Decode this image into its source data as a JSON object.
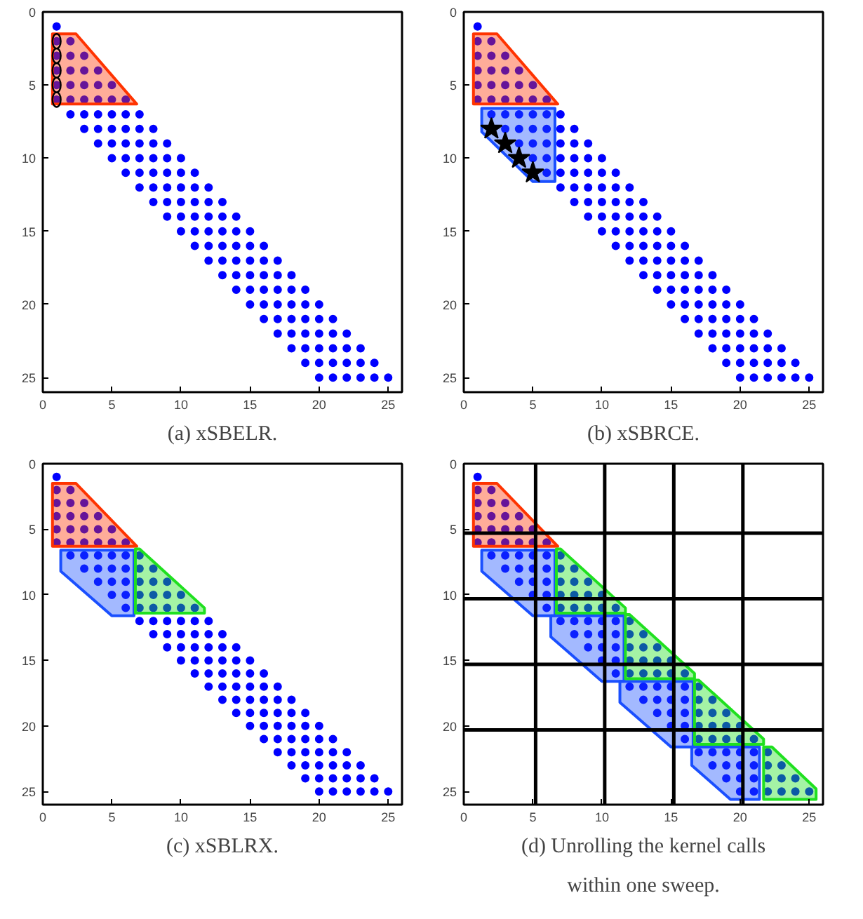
{
  "chart_data": [
    {
      "type": "scatter",
      "title": "(a) xSBELR.",
      "xlim": [
        0,
        26
      ],
      "ylim": [
        26,
        0
      ],
      "xticks": [
        0,
        5,
        10,
        15,
        20,
        25
      ],
      "yticks": [
        0,
        5,
        10,
        15,
        20,
        25
      ],
      "series": [
        {
          "type": "scatter",
          "marker": "circle",
          "color": "#0000ff",
          "x": [
            1,
            1,
            2,
            1,
            2,
            3,
            1,
            2,
            3,
            4,
            1,
            2,
            3,
            4,
            5,
            1,
            2,
            3,
            4,
            5,
            6,
            2,
            3,
            4,
            5,
            6,
            7,
            3,
            4,
            5,
            6,
            7,
            8,
            4,
            5,
            6,
            7,
            8,
            9,
            5,
            6,
            7,
            8,
            9,
            10,
            6,
            7,
            8,
            9,
            10,
            11,
            7,
            8,
            9,
            10,
            11,
            12,
            8,
            9,
            10,
            11,
            12,
            13,
            9,
            10,
            11,
            12,
            13,
            14,
            10,
            11,
            12,
            13,
            14,
            15,
            11,
            12,
            13,
            14,
            15,
            16,
            12,
            13,
            14,
            15,
            16,
            17,
            13,
            14,
            15,
            16,
            17,
            18,
            14,
            15,
            16,
            17,
            18,
            19,
            15,
            16,
            17,
            18,
            19,
            20,
            16,
            17,
            18,
            19,
            20,
            21,
            17,
            18,
            19,
            20,
            21,
            22,
            18,
            19,
            20,
            21,
            22,
            23,
            19,
            20,
            21,
            22,
            23,
            24,
            20,
            21,
            22,
            23,
            24,
            25
          ],
          "values": [
            1,
            2,
            2,
            3,
            3,
            3,
            4,
            4,
            4,
            4,
            5,
            5,
            5,
            5,
            5,
            6,
            6,
            6,
            6,
            6,
            6,
            7,
            7,
            7,
            7,
            7,
            7,
            8,
            8,
            8,
            8,
            8,
            8,
            9,
            9,
            9,
            9,
            9,
            9,
            10,
            10,
            10,
            10,
            10,
            10,
            11,
            11,
            11,
            11,
            11,
            11,
            12,
            12,
            12,
            12,
            12,
            12,
            13,
            13,
            13,
            13,
            13,
            13,
            14,
            14,
            14,
            14,
            14,
            14,
            15,
            15,
            15,
            15,
            15,
            15,
            16,
            16,
            16,
            16,
            16,
            16,
            17,
            17,
            17,
            17,
            17,
            17,
            18,
            18,
            18,
            18,
            18,
            18,
            19,
            19,
            19,
            19,
            19,
            19,
            20,
            20,
            20,
            20,
            20,
            20,
            21,
            21,
            21,
            21,
            21,
            21,
            22,
            22,
            22,
            22,
            22,
            22,
            23,
            23,
            23,
            23,
            23,
            23,
            24,
            24,
            24,
            24,
            24,
            24,
            25,
            25,
            25,
            25,
            25,
            25
          ]
        },
        {
          "type": "area",
          "color": "#ff3300",
          "x": [
            0.7,
            2.4,
            6.8,
            0.7
          ],
          "values": [
            1.5,
            1.5,
            6.3,
            6.3
          ]
        },
        {
          "type": "scatter",
          "marker": "circle",
          "color": "#000000",
          "x": [
            1,
            1,
            1,
            1,
            1
          ],
          "values": [
            2,
            3,
            4,
            5,
            6
          ]
        }
      ]
    },
    {
      "type": "scatter",
      "title": "(b) xSBRCE.",
      "xlim": [
        0,
        26
      ],
      "ylim": [
        26,
        0
      ],
      "xticks": [
        0,
        5,
        10,
        15,
        20,
        25
      ],
      "yticks": [
        0,
        5,
        10,
        15,
        20,
        25
      ],
      "series": [
        {
          "type": "scatter",
          "marker": "circle",
          "color": "#0000ff",
          "x": [
            1,
            1,
            2,
            1,
            2,
            3,
            1,
            2,
            3,
            4,
            1,
            2,
            3,
            4,
            5,
            1,
            2,
            3,
            4,
            5,
            6,
            2,
            3,
            4,
            5,
            6,
            7,
            3,
            4,
            5,
            6,
            7,
            8,
            4,
            5,
            6,
            7,
            8,
            9,
            5,
            6,
            7,
            8,
            9,
            10,
            6,
            7,
            8,
            9,
            10,
            11,
            7,
            8,
            9,
            10,
            11,
            12,
            8,
            9,
            10,
            11,
            12,
            13,
            9,
            10,
            11,
            12,
            13,
            14,
            10,
            11,
            12,
            13,
            14,
            15,
            11,
            12,
            13,
            14,
            15,
            16,
            12,
            13,
            14,
            15,
            16,
            17,
            13,
            14,
            15,
            16,
            17,
            18,
            14,
            15,
            16,
            17,
            18,
            19,
            15,
            16,
            17,
            18,
            19,
            20,
            16,
            17,
            18,
            19,
            20,
            21,
            17,
            18,
            19,
            20,
            21,
            22,
            18,
            19,
            20,
            21,
            22,
            23,
            19,
            20,
            21,
            22,
            23,
            24,
            20,
            21,
            22,
            23,
            24,
            25
          ],
          "values": [
            1,
            2,
            2,
            3,
            3,
            3,
            4,
            4,
            4,
            4,
            5,
            5,
            5,
            5,
            5,
            6,
            6,
            6,
            6,
            6,
            6,
            7,
            7,
            7,
            7,
            7,
            7,
            8,
            8,
            8,
            8,
            8,
            8,
            9,
            9,
            9,
            9,
            9,
            9,
            10,
            10,
            10,
            10,
            10,
            10,
            11,
            11,
            11,
            11,
            11,
            11,
            12,
            12,
            12,
            12,
            12,
            12,
            13,
            13,
            13,
            13,
            13,
            13,
            14,
            14,
            14,
            14,
            14,
            14,
            15,
            15,
            15,
            15,
            15,
            15,
            16,
            16,
            16,
            16,
            16,
            16,
            17,
            17,
            17,
            17,
            17,
            17,
            18,
            18,
            18,
            18,
            18,
            18,
            19,
            19,
            19,
            19,
            19,
            19,
            20,
            20,
            20,
            20,
            20,
            20,
            21,
            21,
            21,
            21,
            21,
            21,
            22,
            22,
            22,
            22,
            22,
            22,
            23,
            23,
            23,
            23,
            23,
            23,
            24,
            24,
            24,
            24,
            24,
            24,
            25,
            25,
            25,
            25,
            25,
            25
          ]
        },
        {
          "type": "area",
          "color": "#ff3300",
          "x": [
            0.7,
            2.4,
            6.8,
            0.7
          ],
          "values": [
            1.5,
            1.5,
            6.3,
            6.3
          ]
        },
        {
          "type": "area",
          "color": "#1a4fff",
          "x": [
            1.3,
            6.6,
            6.6,
            5,
            1.3
          ],
          "values": [
            6.6,
            6.6,
            11.6,
            11.6,
            8.2
          ]
        },
        {
          "type": "scatter",
          "marker": "star",
          "color": "#000000",
          "x": [
            2,
            3,
            4,
            5
          ],
          "values": [
            8,
            9,
            10,
            11
          ]
        }
      ]
    },
    {
      "type": "scatter",
      "title": "(c) xSBLRX.",
      "xlim": [
        0,
        26
      ],
      "ylim": [
        26,
        0
      ],
      "xticks": [
        0,
        5,
        10,
        15,
        20,
        25
      ],
      "yticks": [
        0,
        5,
        10,
        15,
        20,
        25
      ],
      "series": [
        {
          "type": "scatter",
          "marker": "circle",
          "color": "#0000ff",
          "x": [
            1,
            1,
            2,
            1,
            2,
            3,
            1,
            2,
            3,
            4,
            1,
            2,
            3,
            4,
            5,
            1,
            2,
            3,
            4,
            5,
            6,
            2,
            3,
            4,
            5,
            6,
            7,
            3,
            4,
            5,
            6,
            7,
            8,
            4,
            5,
            6,
            7,
            8,
            9,
            5,
            6,
            7,
            8,
            9,
            10,
            6,
            7,
            8,
            9,
            10,
            11,
            7,
            8,
            9,
            10,
            11,
            12,
            8,
            9,
            10,
            11,
            12,
            13,
            9,
            10,
            11,
            12,
            13,
            14,
            10,
            11,
            12,
            13,
            14,
            15,
            11,
            12,
            13,
            14,
            15,
            16,
            12,
            13,
            14,
            15,
            16,
            17,
            13,
            14,
            15,
            16,
            17,
            18,
            14,
            15,
            16,
            17,
            18,
            19,
            15,
            16,
            17,
            18,
            19,
            20,
            16,
            17,
            18,
            19,
            20,
            21,
            17,
            18,
            19,
            20,
            21,
            22,
            18,
            19,
            20,
            21,
            22,
            23,
            19,
            20,
            21,
            22,
            23,
            24,
            20,
            21,
            22,
            23,
            24,
            25
          ],
          "values": [
            1,
            2,
            2,
            3,
            3,
            3,
            4,
            4,
            4,
            4,
            5,
            5,
            5,
            5,
            5,
            6,
            6,
            6,
            6,
            6,
            6,
            7,
            7,
            7,
            7,
            7,
            7,
            8,
            8,
            8,
            8,
            8,
            8,
            9,
            9,
            9,
            9,
            9,
            9,
            10,
            10,
            10,
            10,
            10,
            10,
            11,
            11,
            11,
            11,
            11,
            11,
            12,
            12,
            12,
            12,
            12,
            12,
            13,
            13,
            13,
            13,
            13,
            13,
            14,
            14,
            14,
            14,
            14,
            14,
            15,
            15,
            15,
            15,
            15,
            15,
            16,
            16,
            16,
            16,
            16,
            16,
            17,
            17,
            17,
            17,
            17,
            17,
            18,
            18,
            18,
            18,
            18,
            18,
            19,
            19,
            19,
            19,
            19,
            19,
            20,
            20,
            20,
            20,
            20,
            20,
            21,
            21,
            21,
            21,
            21,
            21,
            22,
            22,
            22,
            22,
            22,
            22,
            23,
            23,
            23,
            23,
            23,
            23,
            24,
            24,
            24,
            24,
            24,
            24,
            25,
            25,
            25,
            25,
            25,
            25
          ]
        },
        {
          "type": "area",
          "color": "#ff3300",
          "x": [
            0.7,
            2.4,
            6.8,
            0.7
          ],
          "values": [
            1.5,
            1.5,
            6.3,
            6.3
          ]
        },
        {
          "type": "area",
          "color": "#1a4fff",
          "x": [
            1.3,
            6.6,
            6.6,
            5,
            1.3
          ],
          "values": [
            6.6,
            6.6,
            11.6,
            11.6,
            8.2
          ]
        },
        {
          "type": "area",
          "color": "#1fe01f",
          "x": [
            6.7,
            7,
            11.7,
            11.7,
            6.7
          ],
          "values": [
            6.5,
            6.5,
            11,
            11.4,
            11.4
          ]
        }
      ]
    },
    {
      "type": "scatter",
      "title": "(d) Unrolling the kernel calls within one sweep.",
      "xlim": [
        0,
        26
      ],
      "ylim": [
        26,
        0
      ],
      "xticks": [
        0,
        5,
        10,
        15,
        20,
        25
      ],
      "yticks": [
        0,
        5,
        10,
        15,
        20,
        25
      ],
      "ref_lines": [
        {
          "axis": "x",
          "value": 5.2,
          "color": "#000000"
        },
        {
          "axis": "x",
          "value": 10.2,
          "color": "#000000"
        },
        {
          "axis": "x",
          "value": 15.2,
          "color": "#000000"
        },
        {
          "axis": "x",
          "value": 20.2,
          "color": "#000000"
        },
        {
          "axis": "y",
          "value": 5.3,
          "color": "#000000"
        },
        {
          "axis": "y",
          "value": 10.3,
          "color": "#000000"
        },
        {
          "axis": "y",
          "value": 15.3,
          "color": "#000000"
        },
        {
          "axis": "y",
          "value": 20.3,
          "color": "#000000"
        }
      ],
      "series": [
        {
          "type": "scatter",
          "marker": "circle",
          "color": "#0000ff",
          "x": [
            1,
            1,
            2,
            1,
            2,
            3,
            1,
            2,
            3,
            4,
            1,
            2,
            3,
            4,
            5,
            1,
            2,
            3,
            4,
            5,
            6,
            2,
            3,
            4,
            5,
            6,
            7,
            3,
            4,
            5,
            6,
            7,
            8,
            4,
            5,
            6,
            7,
            8,
            9,
            5,
            6,
            7,
            8,
            9,
            10,
            6,
            7,
            8,
            9,
            10,
            11,
            7,
            8,
            9,
            10,
            11,
            12,
            8,
            9,
            10,
            11,
            12,
            13,
            9,
            10,
            11,
            12,
            13,
            14,
            10,
            11,
            12,
            13,
            14,
            15,
            11,
            12,
            13,
            14,
            15,
            16,
            12,
            13,
            14,
            15,
            16,
            17,
            13,
            14,
            15,
            16,
            17,
            18,
            14,
            15,
            16,
            17,
            18,
            19,
            15,
            16,
            17,
            18,
            19,
            20,
            16,
            17,
            18,
            19,
            20,
            21,
            17,
            18,
            19,
            20,
            21,
            22,
            18,
            19,
            20,
            21,
            22,
            23,
            19,
            20,
            21,
            22,
            23,
            24,
            20,
            21,
            22,
            23,
            24,
            25
          ],
          "values": [
            1,
            2,
            2,
            3,
            3,
            3,
            4,
            4,
            4,
            4,
            5,
            5,
            5,
            5,
            5,
            6,
            6,
            6,
            6,
            6,
            6,
            7,
            7,
            7,
            7,
            7,
            7,
            8,
            8,
            8,
            8,
            8,
            8,
            9,
            9,
            9,
            9,
            9,
            9,
            10,
            10,
            10,
            10,
            10,
            10,
            11,
            11,
            11,
            11,
            11,
            11,
            12,
            12,
            12,
            12,
            12,
            12,
            13,
            13,
            13,
            13,
            13,
            13,
            14,
            14,
            14,
            14,
            14,
            14,
            15,
            15,
            15,
            15,
            15,
            15,
            16,
            16,
            16,
            16,
            16,
            16,
            17,
            17,
            17,
            17,
            17,
            17,
            18,
            18,
            18,
            18,
            18,
            18,
            19,
            19,
            19,
            19,
            19,
            19,
            20,
            20,
            20,
            20,
            20,
            20,
            21,
            21,
            21,
            21,
            21,
            21,
            22,
            22,
            22,
            22,
            22,
            22,
            23,
            23,
            23,
            23,
            23,
            23,
            24,
            24,
            24,
            24,
            24,
            24,
            25,
            25,
            25,
            25,
            25,
            25
          ]
        },
        {
          "type": "area",
          "color": "#ff3300",
          "x": [
            0.7,
            2.4,
            6.8,
            0.7
          ],
          "values": [
            1.5,
            1.5,
            6.3,
            6.3
          ]
        },
        {
          "type": "area",
          "color": "#1a4fff",
          "x": [
            1.3,
            6.6,
            6.6,
            5,
            1.3
          ],
          "values": [
            6.6,
            6.6,
            11.6,
            11.6,
            8.2
          ]
        },
        {
          "type": "area",
          "color": "#1a4fff",
          "x": [
            6.3,
            11.6,
            11.6,
            10,
            6.3
          ],
          "values": [
            11.6,
            11.6,
            16.6,
            16.6,
            13.2
          ]
        },
        {
          "type": "area",
          "color": "#1a4fff",
          "x": [
            11.3,
            16.6,
            16.6,
            15,
            11.3
          ],
          "values": [
            16.6,
            16.6,
            21.6,
            21.6,
            18.2
          ]
        },
        {
          "type": "area",
          "color": "#1a4fff",
          "x": [
            16.5,
            21.4,
            21.4,
            19.3,
            16.5
          ],
          "values": [
            21.6,
            21.6,
            25.6,
            25.6,
            23
          ]
        },
        {
          "type": "area",
          "color": "#1fe01f",
          "x": [
            6.7,
            7,
            11.7,
            11.7,
            6.7
          ],
          "values": [
            6.5,
            6.5,
            11,
            11.4,
            11.4
          ]
        },
        {
          "type": "area",
          "color": "#1fe01f",
          "x": [
            11.7,
            12,
            16.7,
            16.7,
            11.7
          ],
          "values": [
            11.5,
            11.5,
            16,
            16.4,
            16.4
          ]
        },
        {
          "type": "area",
          "color": "#1fe01f",
          "x": [
            16.7,
            17,
            21.7,
            21.7,
            16.7
          ],
          "values": [
            16.5,
            16.5,
            21,
            21.4,
            21.4
          ]
        },
        {
          "type": "area",
          "color": "#1fe01f",
          "x": [
            21.7,
            22.3,
            25.5,
            25.5,
            21.7
          ],
          "values": [
            21.6,
            21.6,
            24.8,
            25.6,
            25.6
          ]
        }
      ]
    }
  ]
}
